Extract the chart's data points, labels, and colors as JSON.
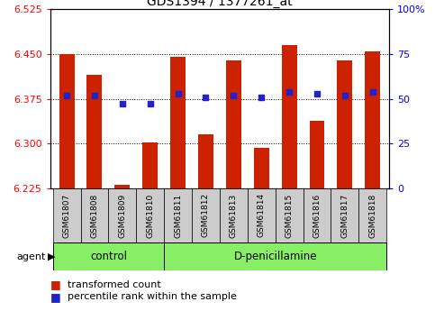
{
  "title": "GDS1394 / 1377261_at",
  "samples": [
    "GSM61807",
    "GSM61808",
    "GSM61809",
    "GSM61810",
    "GSM61811",
    "GSM61812",
    "GSM61813",
    "GSM61814",
    "GSM61815",
    "GSM61816",
    "GSM61817",
    "GSM61818"
  ],
  "transformed_count": [
    6.45,
    6.415,
    6.23,
    6.302,
    6.445,
    6.315,
    6.44,
    6.293,
    6.465,
    6.338,
    6.44,
    6.455
  ],
  "percentile_rank": [
    52,
    52,
    47,
    47,
    53,
    51,
    52,
    51,
    54,
    53,
    52,
    54
  ],
  "bar_bottom": 6.225,
  "ylim": [
    6.225,
    6.525
  ],
  "y2lim": [
    0,
    100
  ],
  "yticks": [
    6.225,
    6.3,
    6.375,
    6.45,
    6.525
  ],
  "y2ticks": [
    0,
    25,
    50,
    75,
    100
  ],
  "bar_color": "#cc2200",
  "dot_color": "#2222cc",
  "control_count": 4,
  "treatment_count": 8,
  "control_label": "control",
  "treatment_label": "D-penicillamine",
  "agent_label": "agent",
  "legend_bar_label": "transformed count",
  "legend_dot_label": "percentile rank within the sample",
  "group_bg_color": "#88ee66",
  "tick_label_bg": "#cccccc",
  "title_fontsize": 10,
  "tick_fontsize": 8,
  "legend_fontsize": 8,
  "grid_lines": [
    6.45,
    6.375,
    6.3
  ],
  "bar_width": 0.55
}
